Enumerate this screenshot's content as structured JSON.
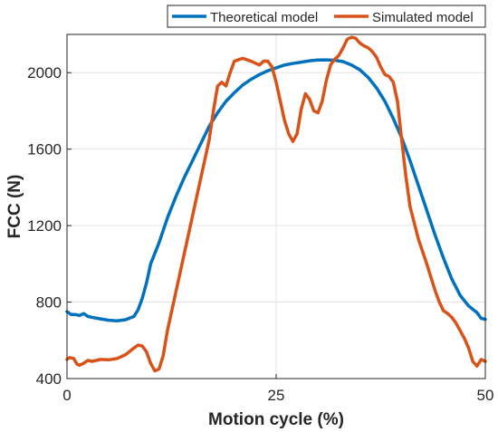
{
  "chart_data": {
    "type": "line",
    "title": "",
    "xlabel": "Motion cycle (%)",
    "ylabel": "FCC (N)",
    "xlim": [
      0,
      50
    ],
    "ylim": [
      400,
      2200
    ],
    "xticks": [
      0,
      25,
      50
    ],
    "yticks": [
      400,
      800,
      1200,
      1600,
      2000
    ],
    "xtick_labels": [
      "0",
      "25",
      "50"
    ],
    "ytick_labels": [
      "400",
      "800",
      "1200",
      "1600",
      "2000"
    ],
    "grid": true,
    "legend_position": "top-right",
    "series": [
      {
        "name": "Theoretical model",
        "color": "#0072BD",
        "points": [
          [
            0,
            750
          ],
          [
            0.5,
            735
          ],
          [
            1,
            735
          ],
          [
            1.5,
            730
          ],
          [
            2,
            740
          ],
          [
            2.5,
            725
          ],
          [
            3,
            720
          ],
          [
            4,
            712
          ],
          [
            5,
            705
          ],
          [
            6,
            702
          ],
          [
            7,
            708
          ],
          [
            8,
            725
          ],
          [
            8.5,
            760
          ],
          [
            9,
            820
          ],
          [
            9.5,
            900
          ],
          [
            10,
            1000
          ],
          [
            11,
            1110
          ],
          [
            12,
            1240
          ],
          [
            13,
            1350
          ],
          [
            14,
            1450
          ],
          [
            15,
            1540
          ],
          [
            16,
            1630
          ],
          [
            17,
            1720
          ],
          [
            18,
            1790
          ],
          [
            19,
            1850
          ],
          [
            20,
            1895
          ],
          [
            21,
            1935
          ],
          [
            22,
            1965
          ],
          [
            23,
            1990
          ],
          [
            24,
            2010
          ],
          [
            25,
            2025
          ],
          [
            26,
            2040
          ],
          [
            27,
            2048
          ],
          [
            28,
            2055
          ],
          [
            29,
            2062
          ],
          [
            30,
            2066
          ],
          [
            31,
            2067
          ],
          [
            32,
            2065
          ],
          [
            33,
            2058
          ],
          [
            34,
            2040
          ],
          [
            35,
            2015
          ],
          [
            36,
            1975
          ],
          [
            37,
            1920
          ],
          [
            38,
            1850
          ],
          [
            39,
            1760
          ],
          [
            40,
            1660
          ],
          [
            41,
            1540
          ],
          [
            42,
            1410
          ],
          [
            43,
            1280
          ],
          [
            44,
            1150
          ],
          [
            45,
            1030
          ],
          [
            46,
            920
          ],
          [
            47,
            835
          ],
          [
            48,
            780
          ],
          [
            49,
            745
          ],
          [
            49.5,
            715
          ],
          [
            50,
            710
          ]
        ]
      },
      {
        "name": "Simulated model",
        "color": "#D95319",
        "points": [
          [
            0,
            500
          ],
          [
            0.3,
            510
          ],
          [
            0.8,
            505
          ],
          [
            1.2,
            475
          ],
          [
            1.5,
            470
          ],
          [
            2,
            480
          ],
          [
            2.5,
            495
          ],
          [
            3,
            490
          ],
          [
            4,
            500
          ],
          [
            5,
            498
          ],
          [
            6,
            505
          ],
          [
            7,
            525
          ],
          [
            8,
            560
          ],
          [
            8.5,
            575
          ],
          [
            9,
            570
          ],
          [
            9.5,
            540
          ],
          [
            10,
            480
          ],
          [
            10.5,
            440
          ],
          [
            11,
            450
          ],
          [
            11.5,
            520
          ],
          [
            12,
            650
          ],
          [
            13,
            850
          ],
          [
            14,
            1050
          ],
          [
            15,
            1250
          ],
          [
            16,
            1450
          ],
          [
            17,
            1650
          ],
          [
            17.5,
            1800
          ],
          [
            18,
            1930
          ],
          [
            18.5,
            1950
          ],
          [
            19,
            1930
          ],
          [
            19.5,
            2000
          ],
          [
            20,
            2060
          ],
          [
            21,
            2075
          ],
          [
            22,
            2060
          ],
          [
            23,
            2040
          ],
          [
            23.5,
            2060
          ],
          [
            24,
            2060
          ],
          [
            24.5,
            2030
          ],
          [
            25,
            1950
          ],
          [
            25.5,
            1850
          ],
          [
            26,
            1750
          ],
          [
            26.5,
            1680
          ],
          [
            27,
            1640
          ],
          [
            27.5,
            1680
          ],
          [
            28,
            1810
          ],
          [
            28.5,
            1890
          ],
          [
            29,
            1860
          ],
          [
            29.5,
            1800
          ],
          [
            30,
            1790
          ],
          [
            30.5,
            1850
          ],
          [
            31,
            1960
          ],
          [
            31.5,
            2040
          ],
          [
            32,
            2070
          ],
          [
            32.5,
            2090
          ],
          [
            33,
            2130
          ],
          [
            33.5,
            2175
          ],
          [
            34,
            2185
          ],
          [
            34.5,
            2180
          ],
          [
            35,
            2155
          ],
          [
            35.5,
            2140
          ],
          [
            36,
            2130
          ],
          [
            36.5,
            2110
          ],
          [
            37,
            2080
          ],
          [
            37.5,
            2030
          ],
          [
            38,
            1990
          ],
          [
            38.5,
            1980
          ],
          [
            39,
            1950
          ],
          [
            39.5,
            1850
          ],
          [
            40,
            1650
          ],
          [
            40.5,
            1460
          ],
          [
            41,
            1300
          ],
          [
            42,
            1130
          ],
          [
            43,
            1000
          ],
          [
            43.5,
            930
          ],
          [
            44,
            860
          ],
          [
            44.5,
            800
          ],
          [
            45,
            755
          ],
          [
            45.5,
            740
          ],
          [
            46,
            720
          ],
          [
            46.5,
            690
          ],
          [
            47,
            650
          ],
          [
            47.5,
            610
          ],
          [
            48,
            560
          ],
          [
            48.5,
            490
          ],
          [
            49,
            465
          ],
          [
            49.5,
            500
          ],
          [
            50,
            490
          ]
        ]
      }
    ]
  }
}
